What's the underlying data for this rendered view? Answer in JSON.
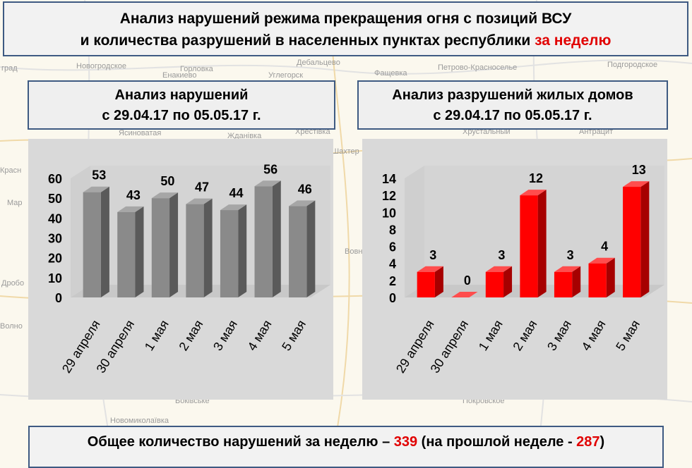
{
  "header": {
    "line1": "Анализ нарушений режима прекращения огня с позиций ВСУ",
    "line2_prefix": "и количества разрушений в населенных пунктах республики ",
    "line2_highlight": "за неделю"
  },
  "map_labels": [
    "град",
    "Новогродское",
    "Горловка",
    "Дебальцево",
    "Фащевка",
    "Петрово-Красноселье",
    "Ясиноватая",
    "Жданівка",
    "Хрестівка",
    "Хрустальный",
    "Антрацит",
    "Красн",
    "Мар",
    "Волно",
    "Дробо",
    "Боківське",
    "Покровское",
    "Новомиколаївка",
    "Вовно",
    "Шахтер",
    "Подгородское",
    "Углегорск",
    "Енакиево"
  ],
  "colors": {
    "accent_red": "#e10000",
    "box_border": "#3e5a82",
    "gray_bar": "#808080",
    "red_bar": "#ff0000"
  },
  "chart_data": [
    {
      "type": "bar",
      "title_line1": "Анализ нарушений",
      "title_line2": "с 29.04.17 по 05.05.17 г.",
      "categories": [
        "29 апреля",
        "30 апреля",
        "1 мая",
        "2 мая",
        "3 мая",
        "4 мая",
        "5 мая"
      ],
      "values": [
        53,
        43,
        50,
        47,
        44,
        56,
        46
      ],
      "yticks": [
        "0",
        "10",
        "20",
        "30",
        "40",
        "50",
        "60"
      ],
      "ylim": [
        0,
        60
      ],
      "color": "gray",
      "grid": false,
      "style": "3d"
    },
    {
      "type": "bar",
      "title_line1": "Анализ разрушений жилых домов",
      "title_line2": "с 29.04.17 по 05.05.17 г.",
      "categories": [
        "29 апреля",
        "30 апреля",
        "1 мая",
        "2 мая",
        "3 мая",
        "4 мая",
        "5 мая"
      ],
      "values": [
        3,
        0,
        3,
        12,
        3,
        4,
        13
      ],
      "yticks": [
        "0",
        "2",
        "4",
        "6",
        "8",
        "10",
        "12",
        "14"
      ],
      "ylim": [
        0,
        14
      ],
      "color": "red",
      "grid": false,
      "style": "3d"
    }
  ],
  "footer": {
    "total_prefix": "Общее количество нарушений за неделю – ",
    "total_value": "339",
    "total_mid": " (на прошлой неделе - ",
    "total_prev": "287",
    "total_suffix": ")"
  }
}
